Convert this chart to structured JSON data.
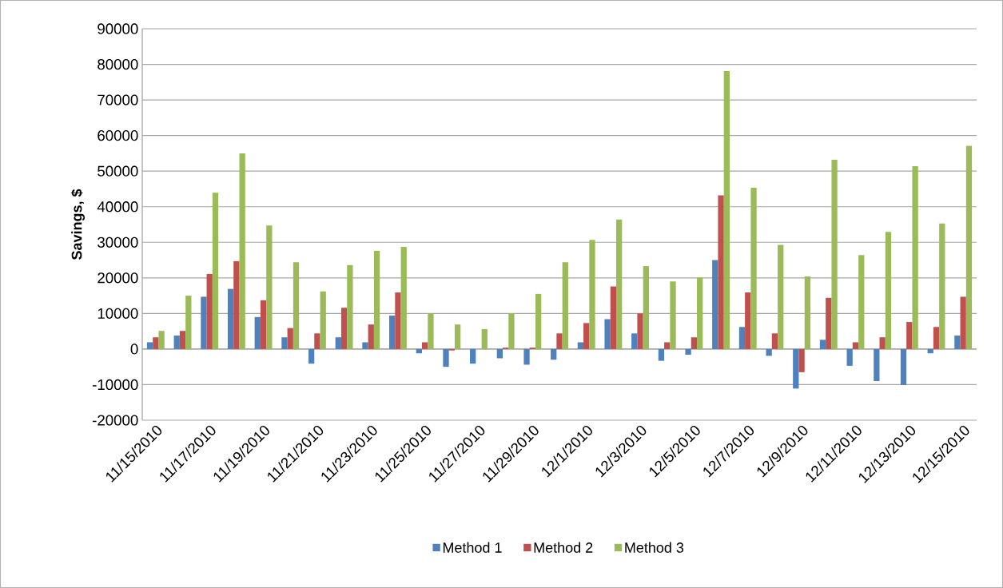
{
  "chart_data": {
    "type": "bar",
    "ylabel": "Savings, $",
    "categories": [
      "11/15/2010",
      null,
      "11/17/2010",
      null,
      "11/19/2010",
      null,
      "11/21/2010",
      null,
      "11/23/2010",
      null,
      "11/25/2010",
      null,
      "11/27/2010",
      null,
      "11/29/2010",
      null,
      "12/1/2010",
      null,
      "12/3/2010",
      null,
      "12/5/2010",
      null,
      "12/7/2010",
      null,
      "12/9/2010",
      null,
      "12/11/2010",
      null,
      "12/13/2010",
      null,
      "12/15/2010"
    ],
    "series": [
      {
        "name": "Method 1",
        "color": "#4f81bd",
        "values": [
          1900,
          3800,
          14700,
          16900,
          9000,
          3300,
          -4100,
          3300,
          1900,
          9400,
          -1200,
          -5000,
          -4100,
          -2600,
          -4400,
          -3000,
          1900,
          8400,
          4400,
          -3300,
          -1600,
          25000,
          6200,
          -1900,
          -11100,
          2600,
          -4700,
          -9000,
          -10100,
          -1200,
          3800
        ]
      },
      {
        "name": "Method 2",
        "color": "#c0504d",
        "values": [
          3300,
          5100,
          21100,
          24700,
          13700,
          5900,
          4400,
          11600,
          6900,
          15900,
          1900,
          -400,
          0,
          400,
          400,
          4400,
          7300,
          17600,
          10000,
          1900,
          3300,
          43200,
          15900,
          4400,
          -6500,
          14400,
          1900,
          3300,
          7600,
          6200,
          14700
        ]
      },
      {
        "name": "Method 3",
        "color": "#9bbb59",
        "values": [
          5100,
          15000,
          43900,
          55000,
          34700,
          24400,
          16200,
          23600,
          27600,
          28700,
          10000,
          6900,
          5600,
          10000,
          15500,
          24400,
          30700,
          36400,
          23300,
          19000,
          20100,
          78100,
          45300,
          29300,
          20400,
          53200,
          26400,
          32900,
          51400,
          35300,
          57100
        ]
      }
    ],
    "ylim": [
      -20000,
      90000
    ],
    "yticks": [
      -20000,
      -10000,
      0,
      10000,
      20000,
      30000,
      40000,
      50000,
      60000,
      70000,
      80000,
      90000
    ],
    "grid": "y",
    "legend": "bottom"
  }
}
